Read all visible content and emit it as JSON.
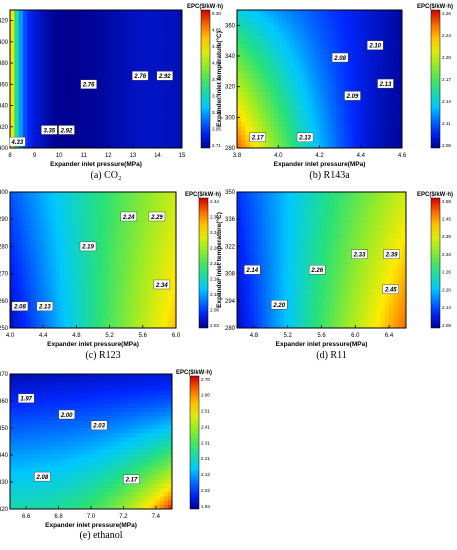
{
  "chart_data": [
    {
      "type": "heatmap",
      "panel_label": "(a)",
      "fluid": "CO₂",
      "xlabel": "Expander inlet pressure(MPa)",
      "ylabel": "Expander inlet temperature(°C)",
      "colorbar_title": "EPC($/kW·h)",
      "xlim": [
        8,
        15
      ],
      "ylim": [
        300,
        430
      ],
      "xticks": [
        "8",
        "9",
        "10",
        "11",
        "12",
        "13",
        "14",
        "15"
      ],
      "yticks": [
        "300",
        "320",
        "340",
        "360",
        "380",
        "400",
        "420"
      ],
      "colorbar_ticks": [
        "5.30",
        "4.65",
        "4.35",
        "4.05",
        "3.75",
        "3.45",
        "3.15",
        "2.95",
        "2.71"
      ],
      "color_range": [
        2.71,
        5.3
      ],
      "contour_labels": [
        {
          "x": 8.3,
          "y": 306,
          "text": "4.33"
        },
        {
          "x": 9.6,
          "y": 317,
          "text": "3.35"
        },
        {
          "x": 10.3,
          "y": 317,
          "text": "2.92"
        },
        {
          "x": 11.2,
          "y": 360,
          "text": "2.76"
        },
        {
          "x": 13.3,
          "y": 368,
          "text": "2.76"
        },
        {
          "x": 14.3,
          "y": 368,
          "text": "2.92"
        }
      ]
    },
    {
      "type": "heatmap",
      "panel_label": "(b)",
      "fluid": "R143a",
      "xlabel": "Expander inlet pressure(MPa)",
      "ylabel": "Expander inlet temperature(°C)",
      "colorbar_title": "EPC($/kW·h)",
      "xlim": [
        3.8,
        4.6
      ],
      "ylim": [
        280,
        370
      ],
      "xticks": [
        "3.8",
        "4.0",
        "4.2",
        "4.4",
        "4.6"
      ],
      "yticks": [
        "280",
        "300",
        "320",
        "340",
        "360"
      ],
      "colorbar_ticks": [
        "2.26",
        "2.24",
        "2.20",
        "2.17",
        "2.14",
        "2.11",
        "2.08"
      ],
      "color_range": [
        2.08,
        2.26
      ],
      "contour_labels": [
        {
          "x": 4.47,
          "y": 347,
          "text": "2.10"
        },
        {
          "x": 4.3,
          "y": 339,
          "text": "2.08"
        },
        {
          "x": 4.36,
          "y": 314,
          "text": "2.09"
        },
        {
          "x": 4.52,
          "y": 322,
          "text": "2.13"
        },
        {
          "x": 3.9,
          "y": 287,
          "text": "2.17"
        },
        {
          "x": 4.13,
          "y": 287,
          "text": "2.13"
        }
      ]
    },
    {
      "type": "heatmap",
      "panel_label": "(c)",
      "fluid": "R123",
      "xlabel": "Expander inlet pressure(MPa)",
      "ylabel": "Expander inlet temperature(°C)",
      "colorbar_title": "EPC($/kW·h)",
      "xlim": [
        4.0,
        6.0
      ],
      "ylim": [
        250,
        300
      ],
      "xticks": [
        "4.0",
        "4.4",
        "4.8",
        "5.2",
        "5.6",
        "6.0"
      ],
      "yticks": [
        "250",
        "260",
        "270",
        "280",
        "290",
        "300"
      ],
      "colorbar_ticks": [
        "2.44",
        "2.39",
        "2.34",
        "2.28",
        "2.23",
        "2.18",
        "2.13",
        "2.08",
        "2.03"
      ],
      "color_range": [
        2.03,
        2.44
      ],
      "contour_labels": [
        {
          "x": 5.43,
          "y": 291,
          "text": "2.24"
        },
        {
          "x": 5.77,
          "y": 291,
          "text": "2.29"
        },
        {
          "x": 4.94,
          "y": 280,
          "text": "2.19"
        },
        {
          "x": 5.83,
          "y": 266,
          "text": "2.34"
        },
        {
          "x": 4.12,
          "y": 258,
          "text": "2.08"
        },
        {
          "x": 4.42,
          "y": 258,
          "text": "2.13"
        }
      ]
    },
    {
      "type": "heatmap",
      "panel_label": "(d)",
      "fluid": "R11",
      "xlabel": "Expander inlet pressure(MPa)",
      "ylabel": "Expander inlet temperature(°C)",
      "colorbar_title": "EPC($/kW·h)",
      "xlim": [
        4.6,
        6.6
      ],
      "ylim": [
        280,
        350
      ],
      "xticks": [
        "4.8",
        "5.2",
        "5.6",
        "6.0",
        "6.4"
      ],
      "yticks": [
        "280",
        "294",
        "308",
        "322",
        "336",
        "350"
      ],
      "colorbar_ticks": [
        "2.58",
        "2.45",
        "2.39",
        "2.33",
        "2.26",
        "2.20",
        "2.14",
        "2.08"
      ],
      "color_range": [
        2.08,
        2.58
      ],
      "contour_labels": [
        {
          "x": 4.78,
          "y": 310,
          "text": "2.14"
        },
        {
          "x": 5.55,
          "y": 310,
          "text": "2.26"
        },
        {
          "x": 5.1,
          "y": 292,
          "text": "2.20"
        },
        {
          "x": 6.05,
          "y": 318,
          "text": "2.33"
        },
        {
          "x": 6.43,
          "y": 318,
          "text": "2.39"
        },
        {
          "x": 6.42,
          "y": 300,
          "text": "2.45"
        }
      ]
    },
    {
      "type": "heatmap",
      "panel_label": "(e)",
      "fluid": "ethanol",
      "xlabel": "Expander inlet pressure(MPa)",
      "ylabel": "Expander inlet temperature(°C)",
      "colorbar_title": "EPC($/kW·h)",
      "xlim": [
        6.5,
        7.5
      ],
      "ylim": [
        320,
        370
      ],
      "xticks": [
        "6.6",
        "6.8",
        "7.0",
        "7.2",
        "7.4"
      ],
      "yticks": [
        "320",
        "330",
        "340",
        "350",
        "360",
        "370"
      ],
      "colorbar_ticks": [
        "2.70",
        "2.60",
        "2.51",
        "2.41",
        "2.31",
        "2.21",
        "2.12",
        "2.02",
        "1.93"
      ],
      "color_range": [
        1.93,
        2.7
      ],
      "contour_labels": [
        {
          "x": 6.6,
          "y": 361,
          "text": "1.97"
        },
        {
          "x": 6.85,
          "y": 355,
          "text": "2.00"
        },
        {
          "x": 7.05,
          "y": 351,
          "text": "2.03"
        },
        {
          "x": 6.7,
          "y": 332,
          "text": "2.08"
        },
        {
          "x": 7.25,
          "y": 331,
          "text": "2.17"
        }
      ]
    }
  ]
}
